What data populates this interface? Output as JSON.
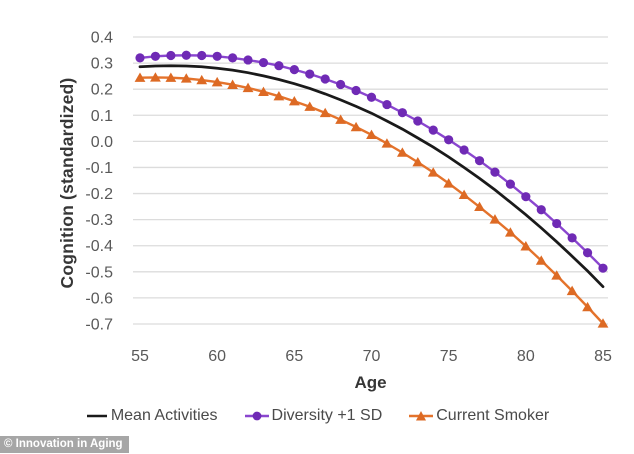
{
  "chart_data": {
    "type": "line",
    "title": "",
    "xlabel": "Age",
    "ylabel": "Cognition (standardized)",
    "xlim": [
      55,
      85
    ],
    "ylim": [
      -0.7,
      0.4
    ],
    "grid": "horizontal-only",
    "legend_position": "bottom",
    "x_ticks": [
      55,
      60,
      65,
      70,
      75,
      80,
      85
    ],
    "x_tick_labels": [
      "55",
      "60",
      "65",
      "70",
      "75",
      "80",
      "85"
    ],
    "y_ticks": [
      0.4,
      0.3,
      0.2,
      0.1,
      0.0,
      -0.1,
      -0.2,
      -0.3,
      -0.4,
      -0.5,
      -0.6,
      -0.7
    ],
    "y_tick_labels": [
      "0.4",
      "0.3",
      "0.2",
      "0.1",
      "0.0",
      "-0.1",
      "-0.2",
      "-0.3",
      "-0.4",
      "-0.5",
      "-0.6",
      "-0.7"
    ],
    "x": [
      55,
      56,
      57,
      58,
      59,
      60,
      61,
      62,
      63,
      64,
      65,
      66,
      67,
      68,
      69,
      70,
      71,
      72,
      73,
      74,
      75,
      76,
      77,
      78,
      79,
      80,
      81,
      82,
      83,
      84,
      85
    ],
    "series": [
      {
        "name": "Mean Activities",
        "color": "#1a1a1a",
        "marker": "none",
        "values": [
          0.286,
          0.289,
          0.29,
          0.289,
          0.286,
          0.28,
          0.273,
          0.263,
          0.251,
          0.237,
          0.221,
          0.203,
          0.182,
          0.159,
          0.134,
          0.108,
          0.078,
          0.047,
          0.013,
          -0.022,
          -0.06,
          -0.1,
          -0.142,
          -0.186,
          -0.233,
          -0.281,
          -0.332,
          -0.385,
          -0.44,
          -0.497,
          -0.557
        ]
      },
      {
        "name": "Diversity +1 SD",
        "color": "#8a46cf",
        "marker": "circle",
        "marker_color": "#6f2ab5",
        "values": [
          0.32,
          0.326,
          0.329,
          0.33,
          0.329,
          0.326,
          0.32,
          0.312,
          0.302,
          0.29,
          0.275,
          0.258,
          0.239,
          0.218,
          0.195,
          0.169,
          0.141,
          0.11,
          0.078,
          0.043,
          0.006,
          -0.033,
          -0.074,
          -0.118,
          -0.164,
          -0.212,
          -0.262,
          -0.315,
          -0.37,
          -0.427,
          -0.486
        ]
      },
      {
        "name": "Current Smoker",
        "color": "#e4732c",
        "marker": "triangle",
        "marker_color": "#dd6a24",
        "values": [
          0.244,
          0.245,
          0.244,
          0.241,
          0.235,
          0.227,
          0.217,
          0.205,
          0.19,
          0.173,
          0.154,
          0.133,
          0.109,
          0.083,
          0.055,
          0.025,
          -0.008,
          -0.043,
          -0.08,
          -0.119,
          -0.161,
          -0.205,
          -0.251,
          -0.299,
          -0.349,
          -0.402,
          -0.457,
          -0.514,
          -0.573,
          -0.635,
          -0.698
        ]
      }
    ],
    "colors": {
      "grid": "#dcdcdc",
      "tick_text": "#595959",
      "axis_title_text": "#363636",
      "legend_text": "#4a4a4a"
    }
  },
  "watermark": {
    "text": "© Innovation in Aging",
    "bg_color": "#a6a6a6",
    "text_color": "#ffffff"
  }
}
